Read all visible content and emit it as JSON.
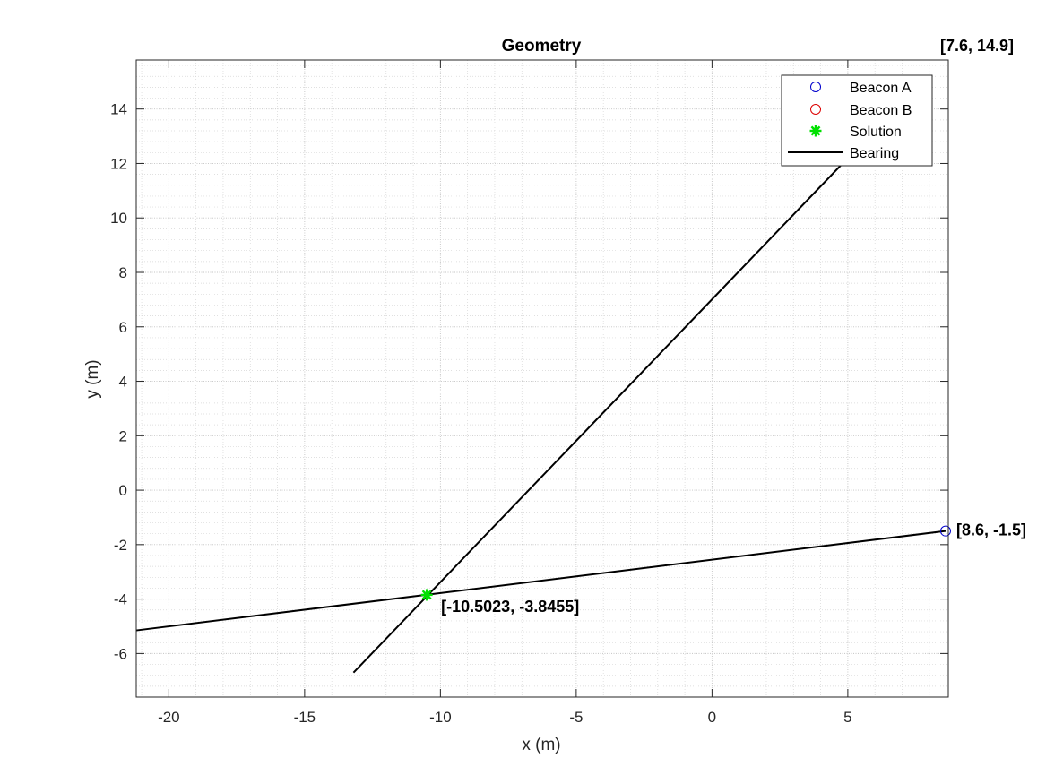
{
  "chart_data": {
    "type": "line",
    "title": "Geometry",
    "xlabel": "x (m)",
    "ylabel": "y (m)",
    "xlim": [
      -21.2,
      8.7
    ],
    "ylim": [
      -7.6,
      15.8
    ],
    "xticks": [
      -20,
      -15,
      -10,
      -5,
      0,
      5
    ],
    "yticks": [
      -6,
      -4,
      -2,
      0,
      2,
      4,
      6,
      8,
      10,
      12,
      14
    ],
    "grid": true,
    "minor_grid": true,
    "legend_location": "top-right",
    "legend": [
      {
        "label": "Beacon A",
        "marker": "circle",
        "color": "#0000cc"
      },
      {
        "label": "Beacon B",
        "marker": "circle",
        "color": "#dd0000"
      },
      {
        "label": "Solution",
        "marker": "asterisk",
        "color": "#00e000"
      },
      {
        "label": "Bearing",
        "marker": "line",
        "color": "#000000"
      }
    ],
    "series": [
      {
        "name": "Beacon A",
        "kind": "marker",
        "x": [
          8.6
        ],
        "y": [
          -1.5
        ]
      },
      {
        "name": "Bearing",
        "kind": "line",
        "x": [
          8.6,
          -21.2
        ],
        "y": [
          -1.5,
          -5.15
        ]
      },
      {
        "name": "Bearing",
        "kind": "line",
        "x": [
          -13.2,
          7.6
        ],
        "y": [
          -6.7,
          14.9
        ]
      },
      {
        "name": "Solution",
        "kind": "marker",
        "x": [
          -10.5023
        ],
        "y": [
          -3.8455
        ]
      }
    ],
    "annotations": [
      {
        "text": "[7.6, 14.9]",
        "x": 7.6,
        "y": 14.9
      },
      {
        "text": "[8.6, -1.5]",
        "x": 8.6,
        "y": -1.5
      },
      {
        "text": "[-10.5023, -3.8455]",
        "x": -10.5023,
        "y": -3.8455
      }
    ]
  }
}
